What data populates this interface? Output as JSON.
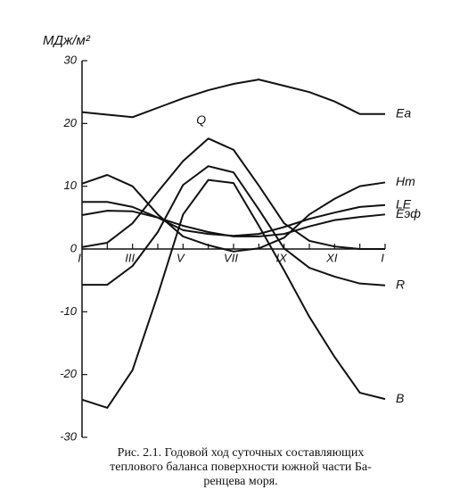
{
  "chart_data": {
    "type": "line",
    "y_label": "МДж/м²",
    "categories": [
      "I",
      null,
      "III",
      null,
      "V",
      null,
      "VII",
      null,
      "IX",
      null,
      "XI",
      null,
      "I"
    ],
    "ylim": [
      -30,
      30
    ],
    "yticks": [
      -30,
      -20,
      -10,
      0,
      10,
      20,
      30
    ],
    "series": [
      {
        "name": "Ea",
        "color": "#111111",
        "values": [
          21.8,
          21.4,
          21,
          22.5,
          24,
          25.3,
          26.3,
          27,
          26,
          25,
          23.5,
          21.5,
          21.5
        ]
      },
      {
        "name": "Q",
        "color": "#111111",
        "values": [
          0.3,
          1,
          4.1,
          9.1,
          14,
          17.6,
          15.8,
          10.1,
          4.1,
          1.3,
          0.4,
          0,
          0
        ]
      },
      {
        "name": "Hт",
        "color": "#111111",
        "values": [
          10.4,
          11.8,
          10,
          5.5,
          2,
          0.6,
          -0.4,
          0.1,
          1.8,
          5.5,
          8,
          10,
          10.6
        ]
      },
      {
        "name": "LE",
        "color": "#111111",
        "values": [
          7.5,
          7.5,
          6.7,
          5,
          3,
          2.4,
          2.1,
          2.4,
          3.5,
          4.8,
          5.8,
          6.7,
          7
        ]
      },
      {
        "name": "Eэф",
        "color": "#111111",
        "values": [
          5.4,
          6.1,
          6,
          5,
          3.7,
          2.7,
          2,
          2,
          2.4,
          3.6,
          4.6,
          5.1,
          5.5
        ]
      },
      {
        "name": "R",
        "color": "#111111",
        "values": [
          -5.7,
          -5.7,
          -2.7,
          2.7,
          10.2,
          13.2,
          12.2,
          6.3,
          0.1,
          -3,
          -4.4,
          -5.5,
          -5.8
        ]
      },
      {
        "name": "B",
        "color": "#111111",
        "values": [
          -24,
          -25.3,
          -19.3,
          -7.3,
          5.5,
          11,
          10.5,
          3.7,
          -3.4,
          -10.8,
          -17.2,
          -22.9,
          -23.9
        ]
      }
    ],
    "caption": [
      "Рис. 2.1. Годовой ход суточных составляющих",
      "теплового баланса поверхности южной части Ба-",
      "ренцева моря."
    ]
  }
}
